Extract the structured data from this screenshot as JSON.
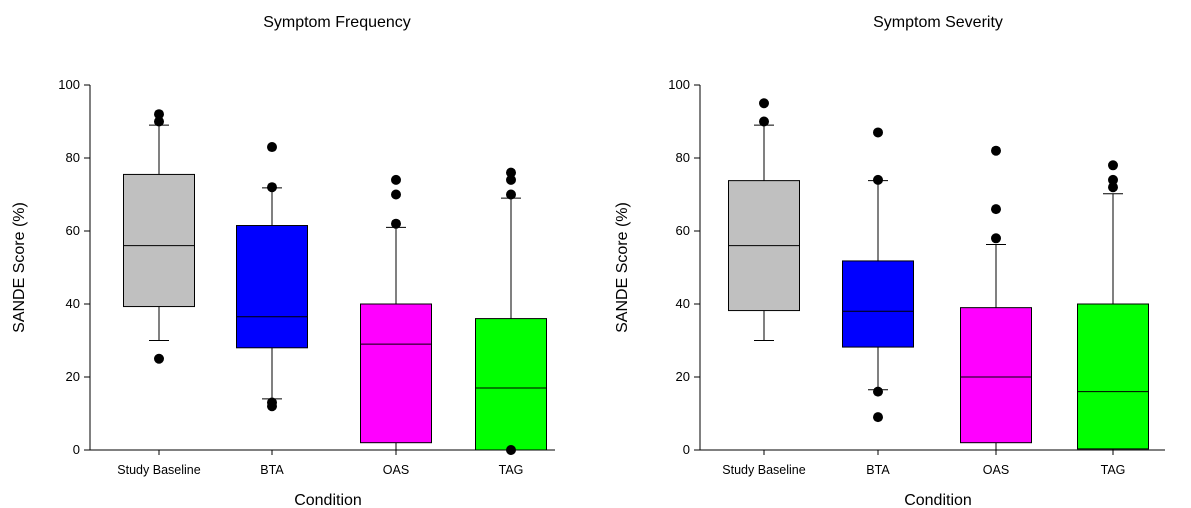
{
  "chart_data": [
    {
      "type": "box",
      "title": "Symptom Frequency",
      "xlabel": "Condition",
      "ylabel": "SANDE Score (%)",
      "ylim": [
        0,
        100
      ],
      "yticks": [
        0,
        20,
        40,
        60,
        80,
        100
      ],
      "grid": false,
      "categories": [
        "Study Baseline",
        "BTA",
        "OAS",
        "TAG"
      ],
      "boxes": [
        {
          "category": "Study Baseline",
          "color": "#c0c0c0",
          "whisker_low": 30,
          "q1": 39.3,
          "median": 56,
          "q3": 75.5,
          "whisker_high": 89,
          "outliers": [
            25,
            90,
            92
          ]
        },
        {
          "category": "BTA",
          "color": "#0000ff",
          "whisker_low": 14,
          "q1": 28,
          "median": 36.5,
          "q3": 61.5,
          "whisker_high": 71.8,
          "outliers": [
            12,
            13,
            72,
            83
          ]
        },
        {
          "category": "OAS",
          "color": "#ff00ff",
          "whisker_low": 0,
          "q1": 2,
          "median": 29,
          "q3": 40,
          "whisker_high": 61,
          "outliers": [
            62,
            70,
            74
          ]
        },
        {
          "category": "TAG",
          "color": "#00ff00",
          "whisker_low": 0,
          "q1": 0,
          "median": 17,
          "q3": 36,
          "whisker_high": 69,
          "outliers": [
            0,
            70,
            74,
            76
          ]
        }
      ]
    },
    {
      "type": "box",
      "title": "Symptom Severity",
      "xlabel": "Condition",
      "ylabel": "SANDE Score (%)",
      "ylim": [
        0,
        100
      ],
      "yticks": [
        0,
        20,
        40,
        60,
        80,
        100
      ],
      "grid": false,
      "categories": [
        "Study Baseline",
        "BTA",
        "OAS",
        "TAG"
      ],
      "boxes": [
        {
          "category": "Study Baseline",
          "color": "#c0c0c0",
          "whisker_low": 30,
          "q1": 38.2,
          "median": 56,
          "q3": 73.8,
          "whisker_high": 89,
          "outliers": [
            90,
            95
          ]
        },
        {
          "category": "BTA",
          "color": "#0000ff",
          "whisker_low": 16.5,
          "q1": 28.2,
          "median": 38,
          "q3": 51.8,
          "whisker_high": 73.8,
          "outliers": [
            9,
            16,
            74,
            87
          ]
        },
        {
          "category": "OAS",
          "color": "#ff00ff",
          "whisker_low": 0,
          "q1": 2,
          "median": 20,
          "q3": 39,
          "whisker_high": 56.3,
          "outliers": [
            58,
            66,
            82
          ]
        },
        {
          "category": "TAG",
          "color": "#00ff00",
          "whisker_low": 0,
          "q1": 0.3,
          "median": 16,
          "q3": 40,
          "whisker_high": 70.2,
          "outliers": [
            72,
            74,
            78
          ]
        }
      ]
    }
  ]
}
